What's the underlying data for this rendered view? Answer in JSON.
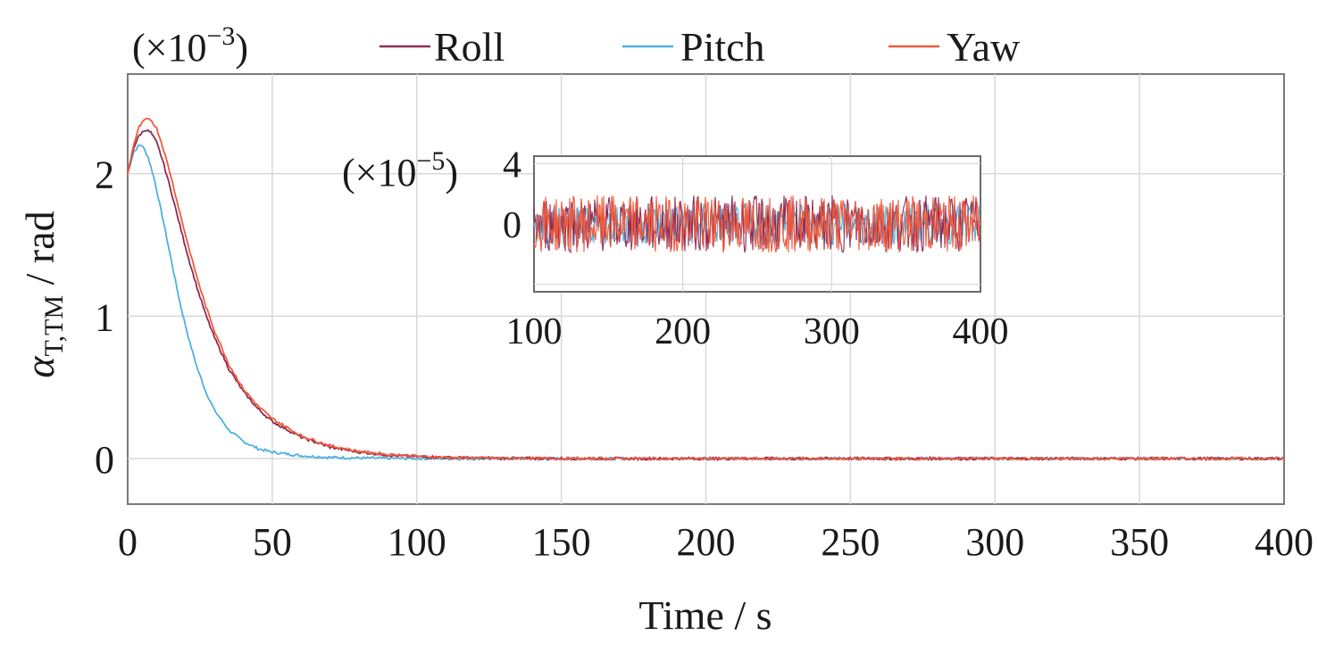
{
  "chart_data": [
    {
      "type": "line",
      "xlabel": "Time / s",
      "ylabel_symbol": "α",
      "ylabel_subscript": "T,TM",
      "ylabel_unit": " / rad",
      "y_multiplier_text": "(×10",
      "y_multiplier_exp": "−3",
      "y_multiplier_close": ")",
      "xlim": [
        0,
        400
      ],
      "ylim": [
        -0.32,
        2.7
      ],
      "xticks": [
        0,
        50,
        100,
        150,
        200,
        250,
        300,
        350,
        400
      ],
      "yticks": [
        0,
        1,
        2
      ],
      "grid": true,
      "legend_position": "top",
      "series": [
        {
          "name": "Roll",
          "color": "#8e2c55",
          "x": [
            0,
            2,
            4,
            6,
            8,
            10,
            12,
            15,
            18,
            21,
            24,
            27,
            30,
            35,
            40,
            45,
            50,
            60,
            70,
            80,
            90,
            100,
            110,
            120,
            150,
            200,
            250,
            300,
            350,
            400
          ],
          "y": [
            2.0,
            2.18,
            2.27,
            2.31,
            2.29,
            2.22,
            2.1,
            1.88,
            1.64,
            1.41,
            1.2,
            1.01,
            0.85,
            0.63,
            0.47,
            0.35,
            0.26,
            0.15,
            0.08,
            0.045,
            0.025,
            0.014,
            0.007,
            0.004,
            0.0,
            0.0,
            0.0,
            0.0,
            0.0,
            0.0
          ]
        },
        {
          "name": "Pitch",
          "color": "#4fb0de",
          "x": [
            0,
            2,
            4,
            5,
            7,
            9,
            12,
            15,
            18,
            21,
            24,
            27,
            30,
            35,
            40,
            45,
            50,
            60,
            70,
            80,
            90,
            100,
            150,
            200,
            250,
            300,
            350,
            400
          ],
          "y": [
            2.0,
            2.15,
            2.2,
            2.2,
            2.12,
            1.98,
            1.7,
            1.4,
            1.1,
            0.85,
            0.64,
            0.47,
            0.34,
            0.2,
            0.12,
            0.07,
            0.045,
            0.02,
            0.008,
            0.004,
            0.002,
            0.0,
            0.0,
            0.0,
            0.0,
            0.0,
            0.0,
            0.0
          ]
        },
        {
          "name": "Yaw",
          "color": "#ef5a3c",
          "x": [
            0,
            2,
            4,
            6,
            8,
            10,
            12,
            15,
            18,
            21,
            24,
            27,
            30,
            35,
            40,
            45,
            50,
            60,
            70,
            80,
            90,
            100,
            110,
            120,
            150,
            200,
            250,
            300,
            350,
            400
          ],
          "y": [
            2.0,
            2.2,
            2.33,
            2.38,
            2.38,
            2.32,
            2.2,
            1.98,
            1.73,
            1.49,
            1.27,
            1.07,
            0.9,
            0.66,
            0.49,
            0.37,
            0.28,
            0.16,
            0.09,
            0.05,
            0.028,
            0.016,
            0.008,
            0.004,
            0.0,
            0.0,
            0.0,
            0.0,
            0.0,
            0.0
          ]
        }
      ]
    },
    {
      "type": "line",
      "inset": true,
      "y_multiplier_text": "(×10",
      "y_multiplier_exp": "−5",
      "y_multiplier_close": ")",
      "xlim": [
        100,
        400
      ],
      "ylim": [
        -4.5,
        4.5
      ],
      "xticks": [
        100,
        200,
        300,
        400
      ],
      "yticks": [
        0,
        4
      ],
      "grid": true,
      "series_note": "noise about zero",
      "series": [
        {
          "name": "Roll",
          "color": "#8e2c55",
          "amplitude": 1.9
        },
        {
          "name": "Pitch",
          "color": "#4fb0de",
          "amplitude": 1.4
        },
        {
          "name": "Yaw",
          "color": "#ef5a3c",
          "amplitude": 1.9
        }
      ]
    }
  ]
}
